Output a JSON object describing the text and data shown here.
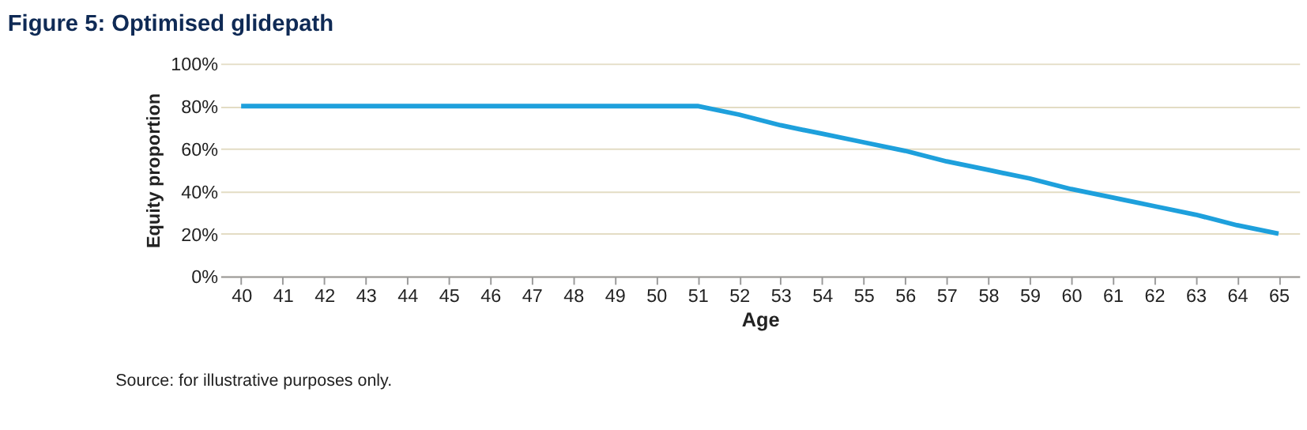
{
  "chart_data": {
    "type": "line",
    "title": "Figure 5: Optimised glidepath",
    "xlabel": "Age",
    "ylabel": "Equity proportion",
    "categories": [
      "40",
      "41",
      "42",
      "43",
      "44",
      "45",
      "46",
      "47",
      "48",
      "49",
      "50",
      "51",
      "52",
      "53",
      "54",
      "55",
      "56",
      "57",
      "58",
      "59",
      "60",
      "61",
      "62",
      "63",
      "64",
      "65"
    ],
    "series": [
      {
        "color": "#1ea0dc",
        "values": [
          80,
          80,
          80,
          80,
          80,
          80,
          80,
          80,
          80,
          80,
          80,
          80,
          76,
          71,
          67,
          63,
          59,
          54,
          50,
          46,
          41,
          37,
          33,
          29,
          24,
          20
        ]
      }
    ],
    "ylim": [
      0,
      100
    ],
    "yticks": [
      {
        "value": 0,
        "label": "0%"
      },
      {
        "value": 20,
        "label": "20%"
      },
      {
        "value": 40,
        "label": "40%"
      },
      {
        "value": 60,
        "label": "60%"
      },
      {
        "value": 80,
        "label": "80%"
      },
      {
        "value": 100,
        "label": "100%"
      }
    ],
    "grid": "y",
    "marker": "none",
    "line_style": "solid",
    "legend": false,
    "annotations": [
      "Source: for illustrative purposes only."
    ]
  }
}
